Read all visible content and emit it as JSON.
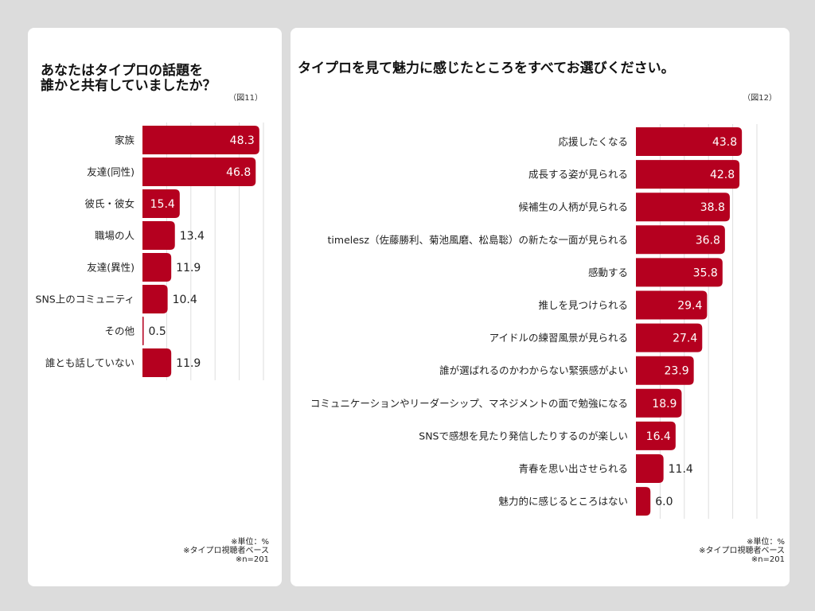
{
  "bar_color": "#b5001f",
  "chart_data": [
    {
      "type": "bar",
      "orientation": "horizontal",
      "title": "あなたはタイプロの話題を\n誰かと共有していましたか？",
      "figure_label": "（図11）",
      "categories": [
        "家族",
        "友達(同性)",
        "彼氏・彼女",
        "職場の人",
        "友達(異性)",
        "SNS上のコミュニティ",
        "その他",
        "誰とも話していない"
      ],
      "values": [
        48.3,
        46.8,
        15.4,
        13.4,
        11.9,
        10.4,
        0.5,
        11.9
      ],
      "xlim": [
        0,
        50
      ],
      "grid": true,
      "notes": [
        "※単位：%",
        "※タイプロ視聴者ベース",
        "※n=201"
      ]
    },
    {
      "type": "bar",
      "orientation": "horizontal",
      "title": "タイプロを見て魅力に感じたところをすべてお選びください。",
      "figure_label": "（図12）",
      "categories": [
        "応援したくなる",
        "成長する姿が見られる",
        "候補生の人柄が見られる",
        "timelesz（佐藤勝利、菊池風磨、松島聡）の新たな一面が見られる",
        "感動する",
        "推しを見つけられる",
        "アイドルの練習風景が見られる",
        "誰が選ばれるのかわからない緊張感がよい",
        "コミュニケーションやリーダーシップ、マネジメントの面で勉強になる",
        "SNSで感想を見たり発信したりするのが楽しい",
        "青春を思い出させられる",
        "魅力的に感じるところはない"
      ],
      "values": [
        43.8,
        42.8,
        38.8,
        36.8,
        35.8,
        29.4,
        27.4,
        23.9,
        18.9,
        16.4,
        11.4,
        6.0
      ],
      "xlim": [
        0,
        50
      ],
      "grid": true,
      "notes": [
        "※単位：%",
        "※タイプロ視聴者ベース",
        "※n=201"
      ]
    }
  ]
}
